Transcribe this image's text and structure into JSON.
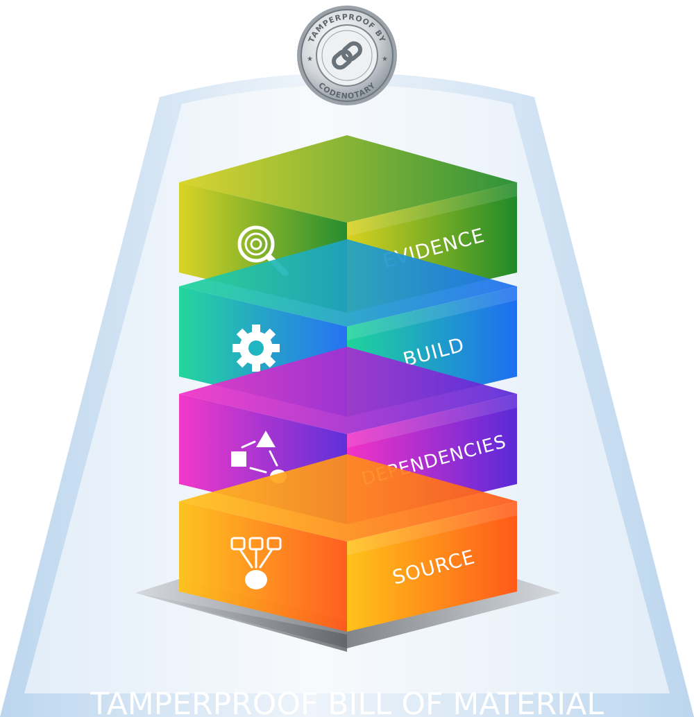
{
  "seal": {
    "top_text": "TAMPERPROOF BY",
    "bottom_text": "CODENOTARY",
    "icon": "chain-link-icon"
  },
  "layers": [
    {
      "label": "EVIDENCE",
      "icon": "fingerprint-magnifier-icon",
      "color_left": "#d9d21f",
      "color_right": "#1f8a2a"
    },
    {
      "label": "BUILD",
      "icon": "gear-icon",
      "color_left": "#1fd49a",
      "color_right": "#1f6ef2"
    },
    {
      "label": "DEPENDENCIES",
      "icon": "dependency-shapes-icon",
      "color_left": "#f233c6",
      "color_right": "#5a2ad8"
    },
    {
      "label": "SOURCE",
      "icon": "source-tree-icon",
      "color_left": "#ffc21a",
      "color_right": "#ff5a1a"
    }
  ],
  "footer": {
    "title": "TAMPERPROOF BILL OF MATERIAL"
  }
}
